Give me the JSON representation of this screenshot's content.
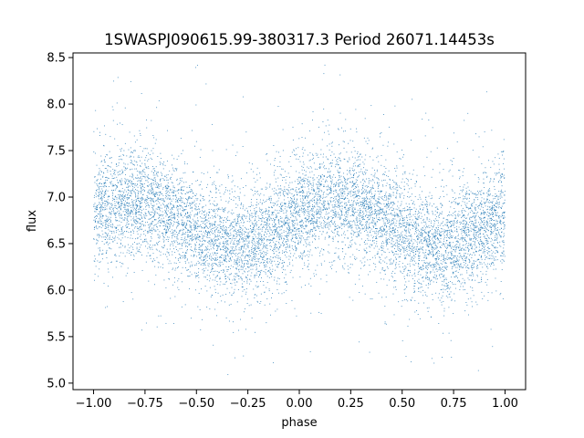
{
  "chart_data": {
    "type": "scatter",
    "title": "1SWASPJ090615.99-380317.3 Period 26071.14453s",
    "xlabel": "phase",
    "ylabel": "flux",
    "xlim": [
      -1.1,
      1.1
    ],
    "ylim": [
      4.93,
      8.55
    ],
    "xticks": [
      "−1.00",
      "−0.75",
      "−0.50",
      "−0.25",
      "0.00",
      "0.25",
      "0.50",
      "0.75",
      "1.00"
    ],
    "xtick_values": [
      -1.0,
      -0.75,
      -0.5,
      -0.25,
      0.0,
      0.25,
      0.5,
      0.75,
      1.0
    ],
    "yticks": [
      "5.0",
      "5.5",
      "6.0",
      "6.5",
      "7.0",
      "7.5",
      "8.0",
      "8.5"
    ],
    "ytick_values": [
      5.0,
      5.5,
      6.0,
      6.5,
      7.0,
      7.5,
      8.0,
      8.5
    ],
    "grid": false,
    "legend": "none",
    "point_color": "#1f77b4",
    "series": [
      {
        "phase_range": [
          -1.0,
          1.0
        ],
        "approx_point_count": 9000,
        "trend": {
          "mean_flux": 6.72,
          "amplitude": 0.24,
          "maximum_phase": [
            -0.82,
            0.18
          ],
          "minimum_phase": [
            -0.27,
            0.73
          ]
        },
        "scatter_std": 0.28,
        "outlier_range": [
          5.05,
          8.45
        ]
      }
    ]
  }
}
